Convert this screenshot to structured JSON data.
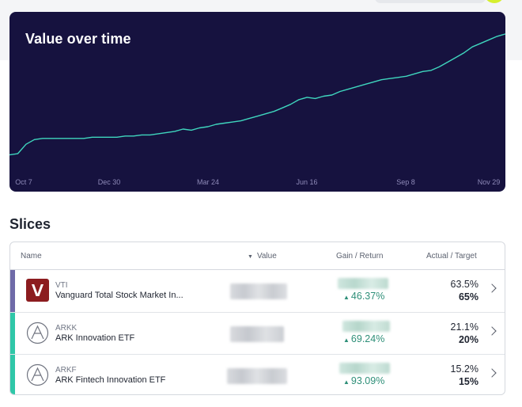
{
  "header": {
    "accent_color": "#d6ef2f"
  },
  "chart_data": {
    "type": "line",
    "title": "Value over time",
    "x_ticks": [
      "Oct 7",
      "Dec 30",
      "Mar 24",
      "Jun 16",
      "Sep 8",
      "Nov 29"
    ],
    "x": [
      "Oct 7",
      "Oct 14",
      "Oct 21",
      "Oct 28",
      "Nov 4",
      "Nov 11",
      "Nov 18",
      "Nov 25",
      "Dec 2",
      "Dec 9",
      "Dec 16",
      "Dec 23",
      "Dec 30",
      "Jan 6",
      "Jan 13",
      "Jan 20",
      "Jan 27",
      "Feb 3",
      "Feb 10",
      "Feb 17",
      "Feb 24",
      "Mar 3",
      "Mar 10",
      "Mar 17",
      "Mar 24",
      "Mar 31",
      "Apr 7",
      "Apr 14",
      "Apr 21",
      "Apr 28",
      "May 5",
      "May 12",
      "May 19",
      "May 26",
      "Jun 2",
      "Jun 9",
      "Jun 16",
      "Jun 23",
      "Jun 30",
      "Jul 7",
      "Jul 14",
      "Jul 21",
      "Jul 28",
      "Aug 4",
      "Aug 11",
      "Aug 18",
      "Aug 25",
      "Sep 1",
      "Sep 8",
      "Sep 15",
      "Sep 22",
      "Sep 29",
      "Oct 6",
      "Oct 13",
      "Oct 20",
      "Oct 27",
      "Nov 3",
      "Nov 10",
      "Nov 17",
      "Nov 24",
      "Nov 29"
    ],
    "values": [
      3,
      4,
      12,
      16,
      17,
      17,
      17,
      17,
      17,
      17,
      18,
      18,
      18,
      18,
      19,
      19,
      20,
      20,
      21,
      22,
      23,
      25,
      24,
      26,
      27,
      29,
      30,
      31,
      32,
      34,
      36,
      38,
      40,
      43,
      46,
      50,
      52,
      51,
      53,
      54,
      57,
      59,
      61,
      63,
      65,
      67,
      68,
      69,
      70,
      72,
      74,
      75,
      78,
      82,
      86,
      90,
      95,
      98,
      101,
      104,
      106
    ],
    "ylim": [
      0,
      110
    ],
    "line_color": "#3fd6be",
    "background": "#16123f",
    "grid": false,
    "legend": "none"
  },
  "slices": {
    "title": "Slices",
    "columns": {
      "name": "Name",
      "value": "Value",
      "gain": "Gain / Return",
      "target": "Actual / Target"
    },
    "rows": [
      {
        "ticker": "VTI",
        "name": "Vanguard Total Stock Market In...",
        "return": "46.37%",
        "actual": "63.5%",
        "target": "65%",
        "accent": "#6f6aa8",
        "logo": "vanguard-logo"
      },
      {
        "ticker": "ARKK",
        "name": "ARK Innovation ETF",
        "return": "69.24%",
        "actual": "21.1%",
        "target": "20%",
        "accent": "#2fc7a8",
        "logo": "ark-logo"
      },
      {
        "ticker": "ARKF",
        "name": "ARK Fintech Innovation ETF",
        "return": "93.09%",
        "actual": "15.2%",
        "target": "15%",
        "accent": "#2fc7a8",
        "logo": "ark-logo"
      }
    ],
    "return_color": "#2e8f78",
    "up_icon": "triangle-up-icon",
    "chevron_icon": "chevron-right-icon"
  }
}
